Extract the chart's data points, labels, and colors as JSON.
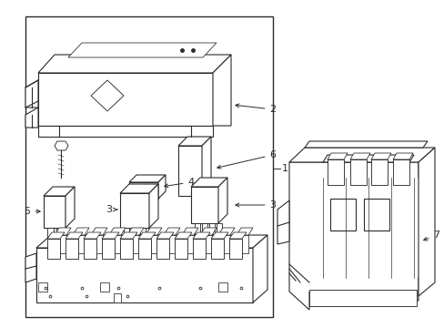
{
  "bg_color": "#ffffff",
  "line_color": "#2a2a2a",
  "lw": 0.8,
  "fig_width": 4.89,
  "fig_height": 3.6,
  "dpi": 100
}
